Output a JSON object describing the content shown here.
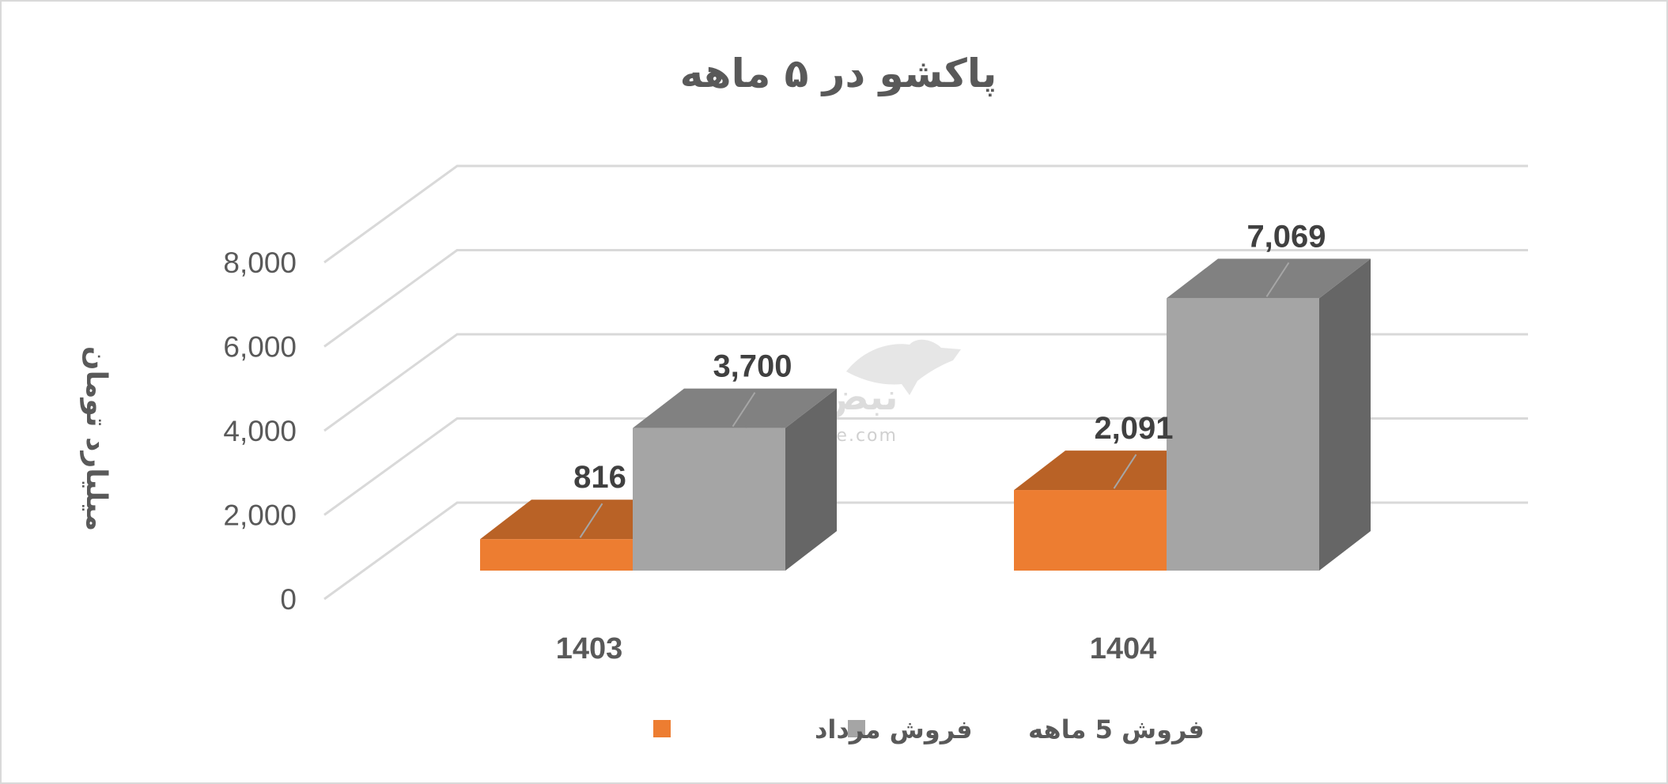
{
  "chart_data": {
    "type": "bar",
    "title": "پاکشو در ۵ ماهه",
    "ylabel": "میلیارد تومان",
    "xlabel": "",
    "ylim": [
      0,
      8000
    ],
    "yticks": [
      "0",
      "2,000",
      "4,000",
      "6,000",
      "8,000"
    ],
    "categories": [
      "1403",
      "1404"
    ],
    "series": [
      {
        "name": "فروش مرداد",
        "color": "#ed7d31",
        "values": [
          816,
          2091
        ],
        "labels": [
          "816",
          "2,091"
        ]
      },
      {
        "name": "فروش 5 ماهه",
        "color": "#a5a5a5",
        "values": [
          3700,
          7069
        ],
        "labels": [
          "3,700",
          "7,069"
        ]
      }
    ],
    "grid": true,
    "legend_position": "bottom",
    "style": "3d-clustered-column"
  },
  "watermark": {
    "logo": "نبض بورس",
    "text": "nabzebourse.com"
  }
}
